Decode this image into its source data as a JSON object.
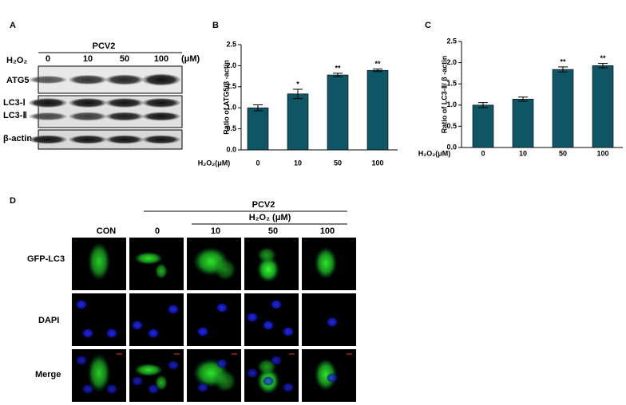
{
  "chart_data": [
    {
      "type": "bar",
      "panel": "B",
      "ylabel": "Ratio of ATG5/β -actin",
      "xlabel": "H₂O₂(μM)",
      "categories": [
        "0",
        "10",
        "50",
        "100"
      ],
      "values": [
        1.0,
        1.33,
        1.78,
        1.89
      ],
      "errors": [
        0.07,
        0.11,
        0.04,
        0.03
      ],
      "annotations": [
        null,
        "*",
        "**",
        "**"
      ],
      "color": "#0e5566",
      "ylim": [
        0,
        2.5
      ],
      "yticks": [
        {
          "value": 0,
          "label": "0.0"
        },
        0.5,
        {
          "value": 1,
          "label": "1.0"
        },
        1.5,
        {
          "value": 2,
          "label": "2.0"
        },
        2.5
      ],
      "grid": false
    },
    {
      "type": "bar",
      "panel": "C",
      "ylabel": "Ratio of LC3-Ⅱ/ β -actin",
      "xlabel": "H₂O₂(μM)",
      "categories": [
        "0",
        "10",
        "50",
        "100"
      ],
      "values": [
        1.0,
        1.14,
        1.84,
        1.93
      ],
      "errors": [
        0.06,
        0.05,
        0.06,
        0.05
      ],
      "annotations": [
        null,
        null,
        "**",
        "**"
      ],
      "color": "#0e5566",
      "ylim": [
        0,
        2.5
      ],
      "yticks": [
        {
          "value": 0,
          "label": "0.0"
        },
        0.5,
        {
          "value": 1,
          "label": "1.0"
        },
        1.5,
        {
          "value": 2,
          "label": "2.0"
        },
        2.5
      ],
      "grid": false
    }
  ],
  "panel_a": {
    "letter": "A",
    "group": "PCV2",
    "treatment": "H₂O₂",
    "doses": [
      "0",
      "10",
      "50",
      "100"
    ],
    "unit": "(μM)",
    "rows": [
      "ATG5",
      "LC3-Ⅰ",
      "LC3-Ⅱ",
      "β-actin"
    ]
  },
  "panel_d": {
    "letter": "D",
    "group": "PCV2",
    "treatment": "H₂O₂ (μM)",
    "columns": [
      "CON",
      "0",
      "10",
      "50",
      "100"
    ],
    "rows": [
      "GFP-LC3",
      "DAPI",
      "Merge"
    ]
  }
}
